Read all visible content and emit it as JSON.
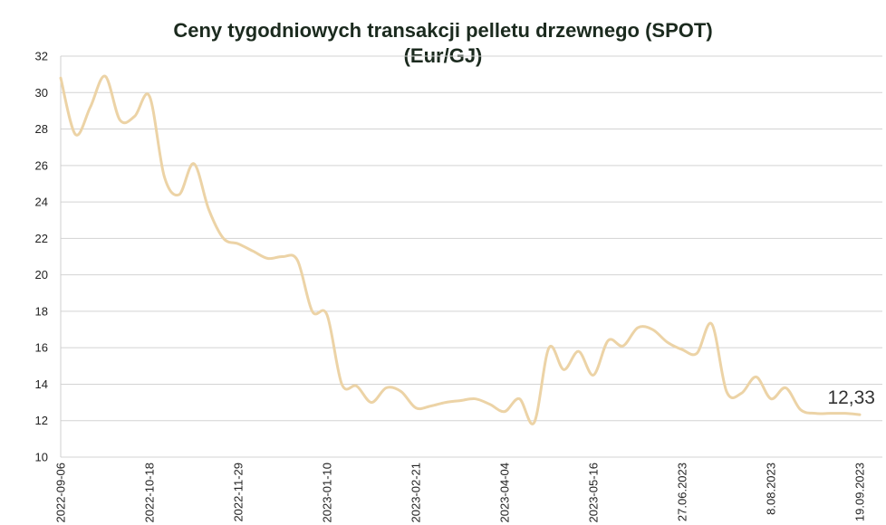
{
  "chart_data": {
    "type": "line",
    "title": "Ceny tygodniowych transakcji pelletu drzewnego (SPOT)",
    "subtitle": "(Eur/GJ)",
    "xlabel": "",
    "ylabel": "",
    "ylim": [
      10,
      32
    ],
    "y_ticks": [
      "10",
      "12",
      "14",
      "16",
      "18",
      "20",
      "22",
      "24",
      "26",
      "28",
      "30",
      "32"
    ],
    "x_ticks": [
      "2022-09-06",
      "2022-10-18",
      "2022-11-29",
      "2023-01-10",
      "2023-02-21",
      "2023-04-04",
      "2023-05-16",
      "27.06.2023",
      "8.08.2023",
      "19.09.2023"
    ],
    "grid": "horizontal",
    "legend": "none",
    "line_color": "#ecd3a6",
    "x": [
      "2022-09-06",
      "2022-09-13",
      "2022-09-20",
      "2022-09-27",
      "2022-10-04",
      "2022-10-11",
      "2022-10-18",
      "2022-10-25",
      "2022-11-01",
      "2022-11-08",
      "2022-11-15",
      "2022-11-22",
      "2022-11-29",
      "2022-12-06",
      "2022-12-13",
      "2022-12-20",
      "2022-12-27",
      "2023-01-03",
      "2023-01-10",
      "2023-01-17",
      "2023-01-24",
      "2023-01-31",
      "2023-02-07",
      "2023-02-14",
      "2023-02-21",
      "2023-02-28",
      "2023-03-07",
      "2023-03-14",
      "2023-03-21",
      "2023-03-28",
      "2023-04-04",
      "2023-04-11",
      "2023-04-18",
      "2023-04-25",
      "2023-05-02",
      "2023-05-09",
      "2023-05-16",
      "2023-05-23",
      "2023-05-30",
      "2023-06-06",
      "2023-06-13",
      "2023-06-20",
      "2023-06-27",
      "2023-07-04",
      "2023-07-11",
      "2023-07-18",
      "2023-07-25",
      "2023-08-01",
      "2023-08-08",
      "2023-08-15",
      "2023-08-22",
      "2023-08-29",
      "2023-09-05",
      "2023-09-12",
      "2023-09-19"
    ],
    "values": [
      30.8,
      27.7,
      29.2,
      30.9,
      28.5,
      28.7,
      29.8,
      25.4,
      24.4,
      26.1,
      23.6,
      22.0,
      21.7,
      21.3,
      20.9,
      21.0,
      20.8,
      18.0,
      17.8,
      14.0,
      13.9,
      13.0,
      13.8,
      13.6,
      12.7,
      12.8,
      13.0,
      13.1,
      13.2,
      12.9,
      12.5,
      13.2,
      11.9,
      16.0,
      14.8,
      15.8,
      14.5,
      16.4,
      16.1,
      17.1,
      17.0,
      16.3,
      15.9,
      15.7,
      17.3,
      13.6,
      13.5,
      14.4,
      13.2,
      13.8,
      12.6,
      12.4,
      12.4,
      12.4,
      12.33
    ],
    "last_value_label": "12,33"
  }
}
